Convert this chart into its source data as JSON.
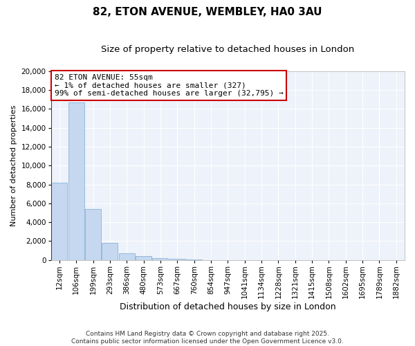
{
  "title": "82, ETON AVENUE, WEMBLEY, HA0 3AU",
  "subtitle": "Size of property relative to detached houses in London",
  "xlabel": "Distribution of detached houses by size in London",
  "ylabel": "Number of detached properties",
  "bar_color": "#c5d8f0",
  "bar_edge_color": "#8ab4d8",
  "background_color": "#ffffff",
  "plot_bg_color": "#eef2fa",
  "grid_color": "#ffffff",
  "annotation_box_color": "#cc0000",
  "property_line_color": "#cc0000",
  "property_line_x": 0,
  "annotation_text": "82 ETON AVENUE: 55sqm\n← 1% of detached houses are smaller (327)\n99% of semi-detached houses are larger (32,795) →",
  "categories": [
    "12sqm",
    "106sqm",
    "199sqm",
    "293sqm",
    "386sqm",
    "480sqm",
    "573sqm",
    "667sqm",
    "760sqm",
    "854sqm",
    "947sqm",
    "1041sqm",
    "1134sqm",
    "1228sqm",
    "1321sqm",
    "1415sqm",
    "1508sqm",
    "1602sqm",
    "1695sqm",
    "1789sqm",
    "1882sqm"
  ],
  "values": [
    8200,
    16700,
    5400,
    1850,
    750,
    400,
    220,
    150,
    50,
    0,
    0,
    0,
    0,
    0,
    0,
    0,
    0,
    0,
    0,
    0,
    0
  ],
  "ylim": [
    0,
    20000
  ],
  "yticks": [
    0,
    2000,
    4000,
    6000,
    8000,
    10000,
    12000,
    14000,
    16000,
    18000,
    20000
  ],
  "footer_text": "Contains HM Land Registry data © Crown copyright and database right 2025.\nContains public sector information licensed under the Open Government Licence v3.0.",
  "title_fontsize": 11,
  "subtitle_fontsize": 9.5,
  "xlabel_fontsize": 9,
  "ylabel_fontsize": 8,
  "tick_fontsize": 7.5,
  "annotation_fontsize": 8,
  "footer_fontsize": 6.5
}
